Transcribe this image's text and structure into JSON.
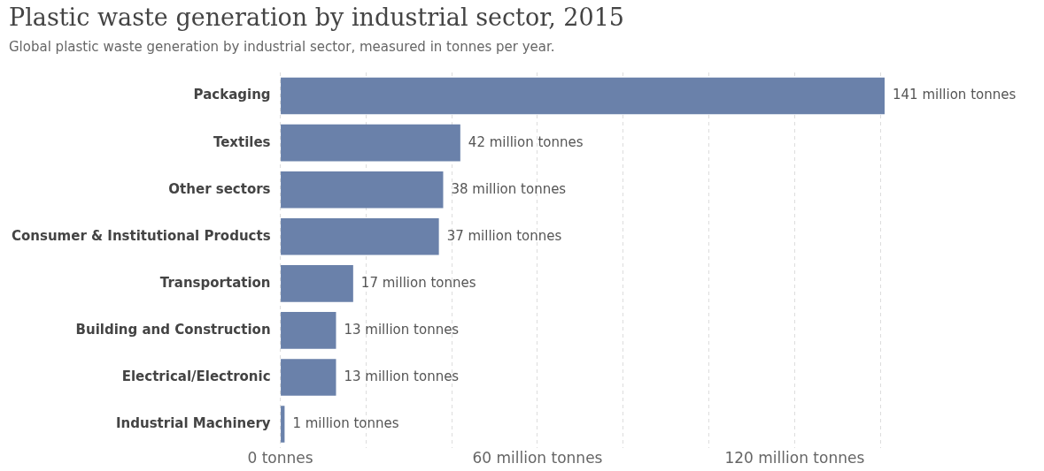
{
  "chart_data": {
    "type": "bar",
    "orientation": "horizontal",
    "title": "Plastic waste generation by industrial sector, 2015",
    "subtitle": "Global plastic waste generation by industrial sector, measured in tonnes per year.",
    "categories": [
      "Packaging",
      "Textiles",
      "Other sectors",
      "Consumer & Institutional Products",
      "Transportation",
      "Building and Construction",
      "Electrical/Electronic",
      "Industrial Machinery"
    ],
    "values": [
      141,
      42,
      38,
      37,
      17,
      13,
      13,
      1
    ],
    "value_labels": [
      "141 million tonnes",
      "42 million tonnes",
      "38 million tonnes",
      "37 million tonnes",
      "17 million tonnes",
      "13 million tonnes",
      "13 million tonnes",
      "1 million tonnes"
    ],
    "color": "#6a81aa",
    "xlim": [
      0,
      141
    ],
    "xticks": [
      {
        "value": 0,
        "label": "0 tonnes"
      },
      {
        "value": 20,
        "label": null
      },
      {
        "value": 40,
        "label": null
      },
      {
        "value": 60,
        "label": "60 million tonnes"
      },
      {
        "value": 80,
        "label": null
      },
      {
        "value": 100,
        "label": null
      },
      {
        "value": 120,
        "label": "120 million tonnes"
      },
      {
        "value": 140,
        "label": null
      }
    ],
    "grid": "x",
    "legend": false
  }
}
